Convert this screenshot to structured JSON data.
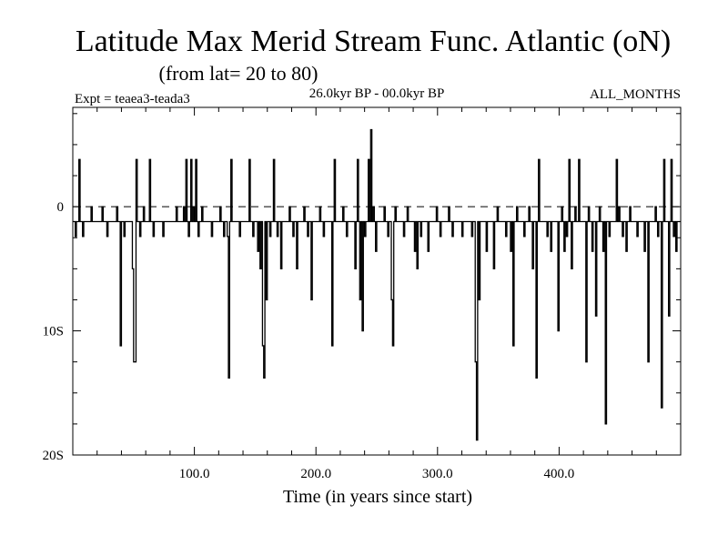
{
  "chart_data": {
    "type": "line",
    "title": "Latitude Max Merid Stream Func. Atlantic (oN)",
    "subtitle": "(from lat= 20 to 80)",
    "experiment": "Expt = teaea3-teada3",
    "period": "26.0kyr BP - 00.0kyr BP",
    "months": "ALL_MONTHS",
    "xlabel": "Time (in years since start)",
    "ylabel": "",
    "xlim": [
      0,
      500
    ],
    "ylim": [
      -20,
      8
    ],
    "x_ticks": [
      {
        "value": 100,
        "label": "100.0"
      },
      {
        "value": 200,
        "label": "200.0"
      },
      {
        "value": 300,
        "label": "300.0"
      },
      {
        "value": 400,
        "label": "400.0"
      }
    ],
    "y_ticks": [
      {
        "value": 0,
        "label": "0"
      },
      {
        "value": -10,
        "label": "10S"
      },
      {
        "value": -20,
        "label": "20S"
      }
    ],
    "reference_line": 0,
    "baseline": -1.2,
    "step_years": 1,
    "spikes": [
      [
        2,
        -2.4
      ],
      [
        5,
        3.8
      ],
      [
        8,
        -2.4
      ],
      [
        12,
        -1.2
      ],
      [
        15,
        0
      ],
      [
        20,
        -1.2
      ],
      [
        24,
        0
      ],
      [
        28,
        -2.4
      ],
      [
        33,
        -1.2
      ],
      [
        36,
        0
      ],
      [
        39,
        -11.2
      ],
      [
        42,
        -2.4
      ],
      [
        46,
        -1.2
      ],
      [
        49,
        -5
      ],
      [
        50,
        -12.5
      ],
      [
        51,
        -12.5
      ],
      [
        52,
        3.8
      ],
      [
        55,
        -2.4
      ],
      [
        58,
        0
      ],
      [
        61,
        -1.2
      ],
      [
        63,
        3.8
      ],
      [
        66,
        -2.4
      ],
      [
        70,
        -1.2
      ],
      [
        74,
        -2.4
      ],
      [
        80,
        -1.2
      ],
      [
        85,
        0
      ],
      [
        88,
        -1.2
      ],
      [
        91,
        0
      ],
      [
        93,
        3.8
      ],
      [
        95,
        -2.4
      ],
      [
        97,
        3.8
      ],
      [
        99,
        0
      ],
      [
        101,
        3.8
      ],
      [
        103,
        -2.4
      ],
      [
        106,
        0
      ],
      [
        110,
        -1.2
      ],
      [
        114,
        -2.4
      ],
      [
        118,
        -1.2
      ],
      [
        121,
        0
      ],
      [
        124,
        -2.4
      ],
      [
        127,
        -2.4
      ],
      [
        128,
        -13.8
      ],
      [
        130,
        3.8
      ],
      [
        133,
        -1.2
      ],
      [
        137,
        -2.4
      ],
      [
        141,
        -1.2
      ],
      [
        145,
        3.8
      ],
      [
        148,
        -2.4
      ],
      [
        150,
        -1.2
      ],
      [
        152,
        -3.6
      ],
      [
        154,
        -5
      ],
      [
        156,
        -11.2
      ],
      [
        157,
        -13.8
      ],
      [
        159,
        -7.5
      ],
      [
        162,
        -2.4
      ],
      [
        165,
        3.8
      ],
      [
        168,
        -2.4
      ],
      [
        171,
        -5
      ],
      [
        175,
        -1.2
      ],
      [
        178,
        0
      ],
      [
        181,
        -2.4
      ],
      [
        184,
        -5
      ],
      [
        187,
        -1.2
      ],
      [
        190,
        0
      ],
      [
        193,
        -2.4
      ],
      [
        196,
        -7.5
      ],
      [
        199,
        -1.2
      ],
      [
        203,
        0
      ],
      [
        206,
        -2.4
      ],
      [
        210,
        -1.2
      ],
      [
        213,
        -11.2
      ],
      [
        215,
        3.8
      ],
      [
        218,
        -1.2
      ],
      [
        222,
        0
      ],
      [
        225,
        -2.4
      ],
      [
        228,
        -1.2
      ],
      [
        232,
        -5
      ],
      [
        234,
        3.8
      ],
      [
        236,
        -7.5
      ],
      [
        238,
        -10
      ],
      [
        240,
        -2.4
      ],
      [
        243,
        3.8
      ],
      [
        245,
        6.2
      ],
      [
        247,
        0
      ],
      [
        249,
        -3.6
      ],
      [
        252,
        -1.2
      ],
      [
        256,
        0
      ],
      [
        259,
        -2.4
      ],
      [
        262,
        -7.5
      ],
      [
        263,
        -11.2
      ],
      [
        265,
        0
      ],
      [
        268,
        -1.2
      ],
      [
        272,
        -2.4
      ],
      [
        275,
        0
      ],
      [
        278,
        -1.2
      ],
      [
        281,
        -3.6
      ],
      [
        283,
        -5
      ],
      [
        286,
        -2.4
      ],
      [
        289,
        -1.2
      ],
      [
        292,
        -3.6
      ],
      [
        295,
        -1.2
      ],
      [
        299,
        0
      ],
      [
        302,
        -2.4
      ],
      [
        305,
        -1.2
      ],
      [
        309,
        0
      ],
      [
        312,
        -2.4
      ],
      [
        316,
        -1.2
      ],
      [
        320,
        -2.4
      ],
      [
        324,
        -1.2
      ],
      [
        328,
        -2.4
      ],
      [
        331,
        -12.5
      ],
      [
        332,
        -18.8
      ],
      [
        334,
        -7.5
      ],
      [
        337,
        -1.2
      ],
      [
        340,
        -3.6
      ],
      [
        343,
        -1.2
      ],
      [
        346,
        -5
      ],
      [
        349,
        0
      ],
      [
        352,
        -1.2
      ],
      [
        356,
        -2.4
      ],
      [
        360,
        -3.6
      ],
      [
        362,
        -11.2
      ],
      [
        365,
        0
      ],
      [
        368,
        -1.2
      ],
      [
        371,
        -2.4
      ],
      [
        375,
        0
      ],
      [
        378,
        -5
      ],
      [
        381,
        -13.8
      ],
      [
        383,
        3.8
      ],
      [
        386,
        -1.2
      ],
      [
        390,
        -2.4
      ],
      [
        393,
        -3.6
      ],
      [
        396,
        -1.2
      ],
      [
        399,
        -10
      ],
      [
        402,
        0
      ],
      [
        404,
        -3.6
      ],
      [
        406,
        -2.4
      ],
      [
        408,
        3.8
      ],
      [
        410,
        -5
      ],
      [
        413,
        0
      ],
      [
        416,
        3.8
      ],
      [
        419,
        -1.2
      ],
      [
        422,
        -12.5
      ],
      [
        424,
        0
      ],
      [
        427,
        -3.6
      ],
      [
        430,
        -8.8
      ],
      [
        433,
        0
      ],
      [
        436,
        -3.6
      ],
      [
        438,
        -17.5
      ],
      [
        441,
        -2.4
      ],
      [
        444,
        -1.2
      ],
      [
        447,
        3.8
      ],
      [
        449,
        0
      ],
      [
        452,
        -2.4
      ],
      [
        455,
        -3.6
      ],
      [
        458,
        0
      ],
      [
        461,
        -1.2
      ],
      [
        464,
        -2.4
      ],
      [
        467,
        -1.2
      ],
      [
        470,
        -3.6
      ],
      [
        473,
        -12.5
      ],
      [
        476,
        -1.2
      ],
      [
        479,
        0
      ],
      [
        481,
        -2.4
      ],
      [
        484,
        -16.2
      ],
      [
        486,
        3.8
      ],
      [
        488,
        -1.2
      ],
      [
        490,
        -8.8
      ],
      [
        492,
        3.8
      ],
      [
        494,
        -2.4
      ],
      [
        496,
        -3.6
      ],
      [
        499,
        -1.2
      ]
    ]
  }
}
